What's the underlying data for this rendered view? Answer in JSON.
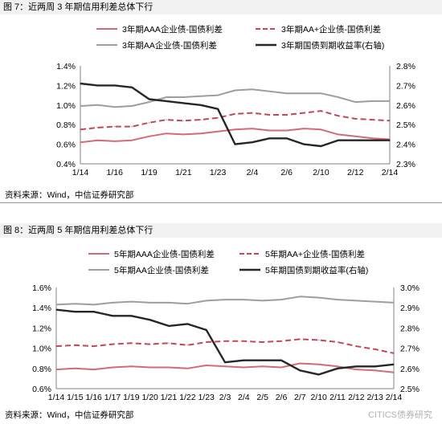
{
  "colors": {
    "aaa": "#d46a78",
    "aa_plus": "#c0485a",
    "aa": "#9e9e9e",
    "gov": "#262626"
  },
  "figure1": {
    "caption": "图 7：近两周 3 年期信用利差总体下行",
    "source": "资料来源：Wind，中信证券研究部",
    "legend": [
      "3年期AAA企业债-国债利差",
      "3年期AA+企业债-国债利差",
      "3年期AA企业债-国债利差",
      "3年期国债到期收益率(右轴)"
    ],
    "y_left_ticks": [
      "0.4%",
      "0.6%",
      "0.8%",
      "1.0%",
      "1.2%",
      "1.4%"
    ],
    "y_right_ticks": [
      "2.3%",
      "2.4%",
      "2.5%",
      "2.6%",
      "2.7%",
      "2.8%"
    ],
    "x_ticks": [
      "1/14",
      "1/16",
      "1/19",
      "1/21",
      "1/23",
      "2/4",
      "2/6",
      "2/10",
      "2/12",
      "2/14"
    ]
  },
  "figure2": {
    "caption": "图 8：近两周 5 年期信用利差总体下行",
    "source": "资料来源：Wind，中信证券研究部",
    "legend": [
      "5年期AAA企业债-国债利差",
      "5年期AA+企业债-国债利差",
      "5年期AA企业债-国债利差",
      "5年期国债到期收益率(右轴)"
    ],
    "y_left_ticks": [
      "0.6%",
      "0.8%",
      "1.0%",
      "1.2%",
      "1.4%",
      "1.6%"
    ],
    "y_right_ticks": [
      "2.5%",
      "2.6%",
      "2.7%",
      "2.8%",
      "2.9%",
      "3.0%"
    ],
    "x_ticks": [
      "1/14",
      "1/15",
      "1/16",
      "1/17",
      "1/19",
      "1/20",
      "1/21",
      "1/22",
      "1/23",
      "2/3",
      "2/4",
      "2/5",
      "2/6",
      "2/7",
      "2/10",
      "2/11",
      "2/12",
      "2/13",
      "2/14"
    ]
  },
  "watermark": "CITICS债券研究",
  "chart_data": [
    {
      "type": "line",
      "title": "图 7：近两周 3 年期信用利差总体下行",
      "x": [
        "1/14",
        "1/15",
        "1/16",
        "1/17",
        "1/19",
        "1/20",
        "1/21",
        "1/22",
        "1/23",
        "2/3",
        "2/4",
        "2/5",
        "2/6",
        "2/7",
        "2/10",
        "2/11",
        "2/12",
        "2/13",
        "2/14"
      ],
      "ylim": [
        0.4,
        1.4
      ],
      "y2lim": [
        2.3,
        2.8
      ],
      "series": [
        {
          "name": "3年期AAA企业债-国债利差",
          "axis": "left",
          "style": "solid",
          "values": [
            0.62,
            0.64,
            0.63,
            0.64,
            0.68,
            0.71,
            0.7,
            0.71,
            0.73,
            0.75,
            0.76,
            0.74,
            0.74,
            0.76,
            0.75,
            0.7,
            0.68,
            0.66,
            0.65
          ]
        },
        {
          "name": "3年期AA+企业债-国债利差",
          "axis": "left",
          "style": "dashed",
          "values": [
            0.75,
            0.77,
            0.78,
            0.78,
            0.82,
            0.85,
            0.84,
            0.85,
            0.87,
            0.91,
            0.92,
            0.9,
            0.9,
            0.92,
            0.94,
            0.89,
            0.86,
            0.85,
            0.84
          ]
        },
        {
          "name": "3年期AA企业债-国债利差",
          "axis": "left",
          "style": "solid",
          "values": [
            0.99,
            1.0,
            0.98,
            0.99,
            1.03,
            1.08,
            1.08,
            1.09,
            1.1,
            1.15,
            1.16,
            1.14,
            1.12,
            1.12,
            1.12,
            1.08,
            1.03,
            1.04,
            1.04
          ]
        },
        {
          "name": "3年期国债到期收益率(右轴)",
          "axis": "right",
          "style": "solid",
          "values": [
            2.71,
            2.7,
            2.7,
            2.69,
            2.63,
            2.62,
            2.61,
            2.6,
            2.58,
            2.4,
            2.41,
            2.43,
            2.43,
            2.4,
            2.39,
            2.42,
            2.42,
            2.42,
            2.42
          ]
        }
      ]
    },
    {
      "type": "line",
      "title": "图 8：近两周 5 年期信用利差总体下行",
      "x": [
        "1/14",
        "1/15",
        "1/16",
        "1/17",
        "1/19",
        "1/20",
        "1/21",
        "1/22",
        "1/23",
        "2/3",
        "2/4",
        "2/5",
        "2/6",
        "2/7",
        "2/10",
        "2/11",
        "2/12",
        "2/13",
        "2/14"
      ],
      "ylim": [
        0.6,
        1.6
      ],
      "y2lim": [
        2.5,
        3.0
      ],
      "series": [
        {
          "name": "5年期AAA企业债-国债利差",
          "axis": "left",
          "style": "solid",
          "values": [
            0.79,
            0.8,
            0.79,
            0.81,
            0.82,
            0.81,
            0.81,
            0.8,
            0.83,
            0.82,
            0.81,
            0.82,
            0.81,
            0.85,
            0.84,
            0.82,
            0.79,
            0.78,
            0.76
          ]
        },
        {
          "name": "5年期AA+企业债-国债利差",
          "axis": "left",
          "style": "dashed",
          "values": [
            1.02,
            1.03,
            1.02,
            1.04,
            1.05,
            1.04,
            1.05,
            1.03,
            1.06,
            1.07,
            1.07,
            1.06,
            1.07,
            1.09,
            1.08,
            1.06,
            1.02,
            0.99,
            0.95
          ]
        },
        {
          "name": "5年期AA企业债-国债利差",
          "axis": "left",
          "style": "solid",
          "values": [
            1.43,
            1.44,
            1.43,
            1.45,
            1.46,
            1.45,
            1.45,
            1.44,
            1.47,
            1.48,
            1.48,
            1.47,
            1.48,
            1.51,
            1.5,
            1.48,
            1.47,
            1.46,
            1.45
          ]
        },
        {
          "name": "5年期国债到期收益率(右轴)",
          "axis": "right",
          "style": "solid",
          "values": [
            2.89,
            2.88,
            2.88,
            2.86,
            2.86,
            2.84,
            2.81,
            2.82,
            2.79,
            2.63,
            2.64,
            2.64,
            2.64,
            2.59,
            2.57,
            2.6,
            2.61,
            2.61,
            2.62
          ]
        }
      ]
    }
  ]
}
